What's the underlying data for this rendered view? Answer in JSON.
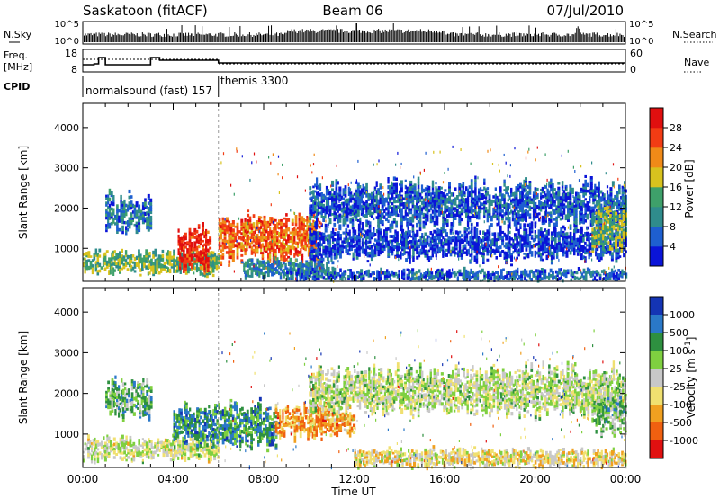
{
  "header": {
    "station": "Saskatoon (fitACF)",
    "beam": "Beam 06",
    "date": "07/Jul/2010"
  },
  "top_panels": {
    "nsky_label": "N.Sky",
    "nsky_ticks": [
      "10^5",
      "10^0"
    ],
    "nsearch_label": "N.Search",
    "nsearch_ticks": [
      "10^5",
      "10^0"
    ],
    "freq_label_line1": "Freq.",
    "freq_label_line2": "[MHz]",
    "freq_ticks": [
      "18",
      "8"
    ],
    "nave_label": "Nave",
    "nave_ticks": [
      "60",
      "0"
    ],
    "cpid_label": "CPID",
    "cpid_segments": [
      {
        "name": "normalsound (fast) 157",
        "start_hour": 0,
        "end_hour": 6
      },
      {
        "name": "themis 3300",
        "start_hour": 6,
        "end_hour": 24
      }
    ]
  },
  "chart_data": [
    {
      "type": "heatmap",
      "title": "",
      "xlabel": "Time UT",
      "ylabel": "Slant Range [km]",
      "x_range_hours": [
        0,
        24
      ],
      "x_ticks": [
        "00:00",
        "04:00",
        "08:00",
        "12:00",
        "16:00",
        "20:00",
        "00:00"
      ],
      "y_range": [
        180,
        4600
      ],
      "y_ticks": [
        1000,
        2000,
        3000,
        4000
      ],
      "colorbar": {
        "label": "Power [dB]",
        "ticks": [
          "4",
          "8",
          "12",
          "16",
          "20",
          "24",
          "28"
        ],
        "colors": [
          "#0a14d8",
          "#1e5fd0",
          "#2f8c8c",
          "#3ea06a",
          "#d8c21e",
          "#f08a18",
          "#f23c14",
          "#e00f0f"
        ]
      },
      "echo_bands": [
        {
          "t0": 0.0,
          "t1": 6.0,
          "r0": 350,
          "r1": 900,
          "level": 0.45
        },
        {
          "t0": 1.0,
          "t1": 3.0,
          "r0": 1400,
          "r1": 2300,
          "level": 0.25
        },
        {
          "t0": 4.2,
          "t1": 5.6,
          "r0": 500,
          "r1": 1500,
          "level": 0.9
        },
        {
          "t0": 6.0,
          "t1": 10.5,
          "r0": 700,
          "r1": 1800,
          "level": 0.75
        },
        {
          "t0": 7.0,
          "t1": 11.0,
          "r0": 300,
          "r1": 700,
          "level": 0.3
        },
        {
          "t0": 10.0,
          "t1": 24.0,
          "r0": 1500,
          "r1": 2600,
          "level": 0.18
        },
        {
          "t0": 10.0,
          "t1": 24.0,
          "r0": 700,
          "r1": 1500,
          "level": 0.12
        },
        {
          "t0": 9.0,
          "t1": 24.0,
          "r0": 200,
          "r1": 450,
          "level": 0.2
        },
        {
          "t0": 22.5,
          "t1": 24.0,
          "r0": 1000,
          "r1": 2000,
          "level": 0.45
        }
      ]
    },
    {
      "type": "heatmap",
      "title": "",
      "xlabel": "Time UT",
      "ylabel": "Slant Range [km]",
      "x_range_hours": [
        0,
        24
      ],
      "x_ticks": [
        "00:00",
        "04:00",
        "08:00",
        "12:00",
        "16:00",
        "20:00",
        "00:00"
      ],
      "y_range": [
        180,
        4600
      ],
      "y_ticks": [
        1000,
        2000,
        3000,
        4000
      ],
      "colorbar": {
        "label": "Velocity [m s^-1]",
        "ticks": [
          "1000",
          "500",
          "100",
          "25",
          "-25",
          "-100",
          "-500",
          "-1000"
        ],
        "colors": [
          "#1434b4",
          "#2a78c8",
          "#2e9040",
          "#7fd040",
          "#c8c8c8",
          "#f0e070",
          "#f0a020",
          "#f06010",
          "#e01010"
        ]
      },
      "echo_bands": [
        {
          "t0": 0.0,
          "t1": 6.0,
          "r0": 350,
          "r1": 900,
          "level": 0.5
        },
        {
          "t0": 1.0,
          "t1": 3.0,
          "r0": 1400,
          "r1": 2300,
          "level": 0.35
        },
        {
          "t0": 4.0,
          "t1": 8.5,
          "r0": 700,
          "r1": 1700,
          "level": 0.25
        },
        {
          "t0": 8.5,
          "t1": 12.0,
          "r0": 900,
          "r1": 1700,
          "level": 0.72
        },
        {
          "t0": 10.0,
          "t1": 24.0,
          "r0": 1500,
          "r1": 2600,
          "level": 0.48
        },
        {
          "t0": 12.0,
          "t1": 24.0,
          "r0": 200,
          "r1": 600,
          "level": 0.58
        },
        {
          "t0": 22.5,
          "t1": 24.0,
          "r0": 1000,
          "r1": 2000,
          "level": 0.38
        }
      ]
    }
  ]
}
